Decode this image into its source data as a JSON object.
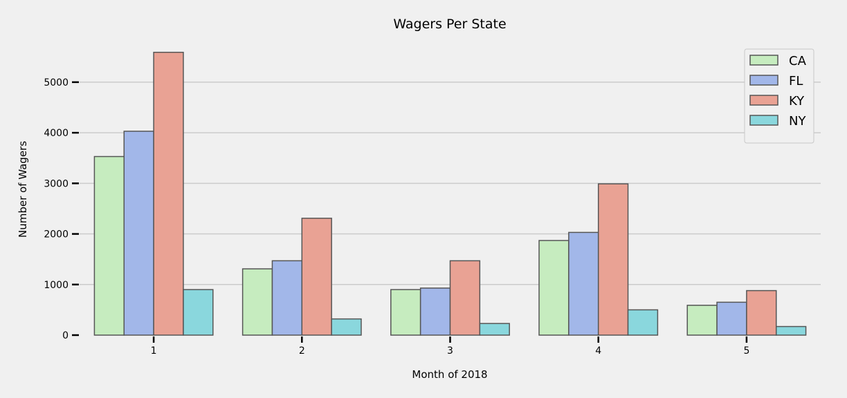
{
  "chart_data": {
    "type": "bar",
    "title": "Wagers Per State",
    "xlabel": "Month of 2018",
    "ylabel": "Number of Wagers",
    "categories": [
      "1",
      "2",
      "3",
      "4",
      "5"
    ],
    "series": [
      {
        "name": "CA",
        "color": "#c6ecbf",
        "values": [
          3530,
          1310,
          900,
          1870,
          590
        ]
      },
      {
        "name": "FL",
        "color": "#a2b7e9",
        "values": [
          4030,
          1470,
          930,
          2030,
          650
        ]
      },
      {
        "name": "KY",
        "color": "#e9a294",
        "values": [
          5590,
          2310,
          1470,
          2990,
          880
        ]
      },
      {
        "name": "NY",
        "color": "#8ad7dd",
        "values": [
          900,
          320,
          230,
          500,
          170
        ]
      }
    ],
    "ylim": [
      0,
      5900
    ],
    "yticks": [
      0,
      1000,
      2000,
      3000,
      4000,
      5000
    ],
    "grid": "horizontal",
    "legend_position": "top-right"
  }
}
